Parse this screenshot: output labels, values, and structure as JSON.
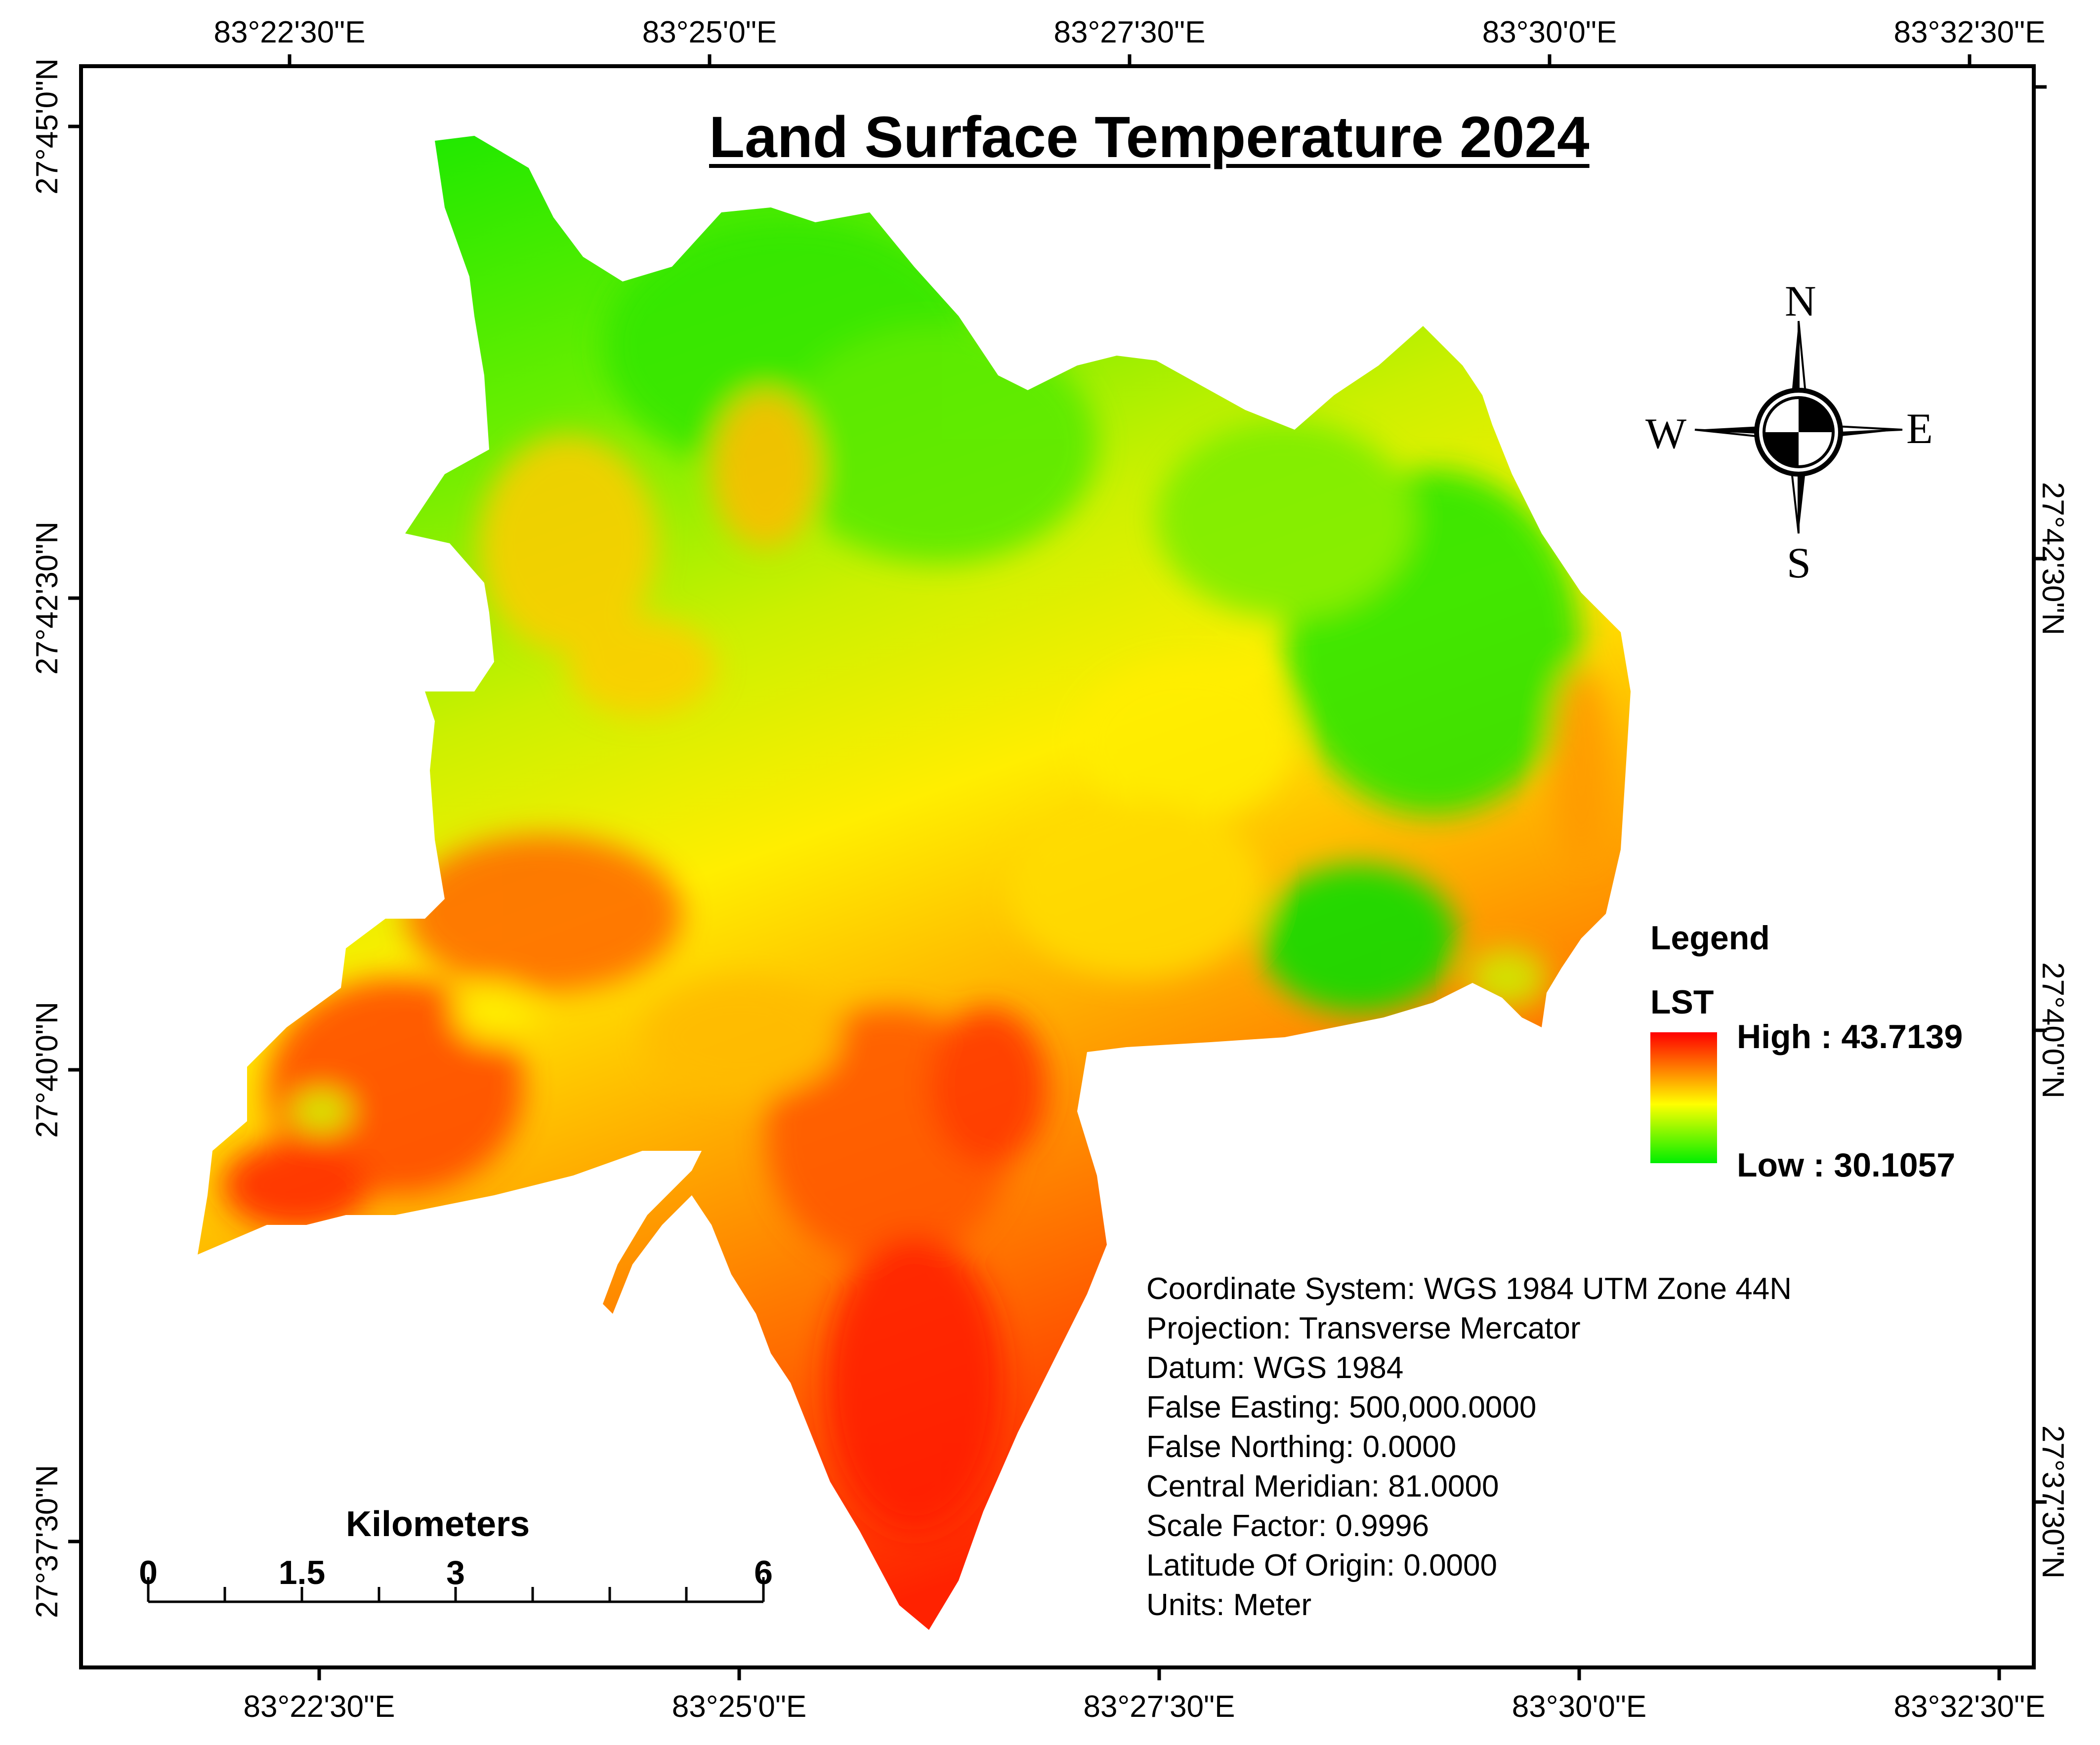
{
  "map": {
    "title": "Land Surface Temperature 2024"
  },
  "coordinates": {
    "top_longitudes": [
      "83°22'30\"E",
      "83°25'0\"E",
      "83°27'30\"E",
      "83°30'0\"E",
      "83°32'30\"E"
    ],
    "bottom_longitudes": [
      "83°22'30\"E",
      "83°25'0\"E",
      "83°27'30\"E",
      "83°30'0\"E",
      "83°32'30\"E"
    ],
    "left_latitudes": [
      "27°45'0\"N",
      "27°42'30\"N",
      "27°40'0\"N",
      "27°37'30\"N"
    ],
    "right_latitudes": [
      "27°42'30\"N",
      "27°40'0\"N",
      "27°37'30\"N"
    ]
  },
  "compass": {
    "north": "N",
    "south": "S",
    "east": "E",
    "west": "W"
  },
  "legend": {
    "heading": "Legend",
    "layer": "LST",
    "high_label": "High : 43.7139",
    "low_label": "Low : 30.1057",
    "high_color": "#ff0000",
    "mid_color": "#ffff00",
    "low_color": "#00ee00"
  },
  "projection_info": [
    "Coordinate System: WGS 1984 UTM Zone 44N",
    "Projection: Transverse Mercator",
    "Datum: WGS 1984",
    "False Easting: 500,000.0000",
    "False Northing: 0.0000",
    "Central Meridian: 81.0000",
    "Scale Factor: 0.9996",
    "Latitude Of Origin: 0.0000",
    "Units: Meter"
  ],
  "scale_bar": {
    "title": "Kilometers",
    "labels": [
      "0",
      "1.5",
      "3",
      "6"
    ]
  }
}
